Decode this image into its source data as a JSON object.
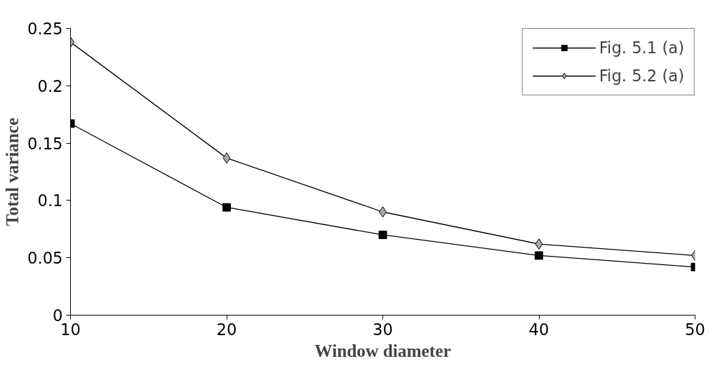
{
  "chart_data": {
    "type": "line",
    "xlabel": "Window diameter",
    "ylabel": "Total variance",
    "x": [
      10,
      20,
      30,
      40,
      50
    ],
    "series": [
      {
        "name": "Fig. 5.1 (a)",
        "color": "#000000",
        "marker": "square",
        "values": [
          0.167,
          0.094,
          0.07,
          0.052,
          0.042
        ]
      },
      {
        "name": "Fig. 5.2 (a)",
        "color": "#a8a8a8",
        "marker": "diamond",
        "values": [
          0.238,
          0.137,
          0.09,
          0.062,
          0.052
        ]
      }
    ],
    "xlim": [
      10,
      50
    ],
    "xticks": [
      10,
      20,
      30,
      40,
      50
    ],
    "ylim": [
      0,
      0.25
    ],
    "yticks": [
      0,
      0.05,
      0.1,
      0.15,
      0.2,
      0.25
    ],
    "grid": false,
    "legend": "top right",
    "line_style": "solid"
  }
}
